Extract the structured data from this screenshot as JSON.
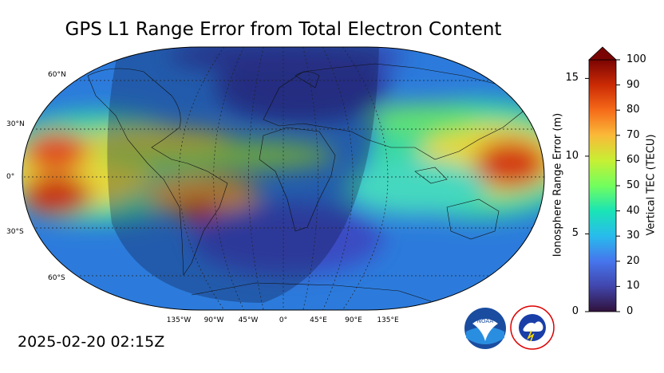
{
  "title": "GPS L1 Range Error from Total Electron Content",
  "timestamp": "2025-02-20 02:15Z",
  "map": {
    "projection": "Robinson",
    "lat_labels": [
      "60°N",
      "30°N",
      "0°",
      "30°S",
      "60°S"
    ],
    "lon_labels": [
      "135°W",
      "90°W",
      "45°W",
      "0°",
      "45°E",
      "90°E",
      "135°E"
    ],
    "gridlines": true,
    "night_shading": true
  },
  "colorbar": {
    "left_label": "Ionosphere Range Error (m)",
    "right_label": "Vertical TEC (TECU)",
    "left_ticks": [
      "0",
      "5",
      "10",
      "15"
    ],
    "right_ticks": [
      "0",
      "10",
      "20",
      "30",
      "40",
      "50",
      "60",
      "70",
      "80",
      "90",
      "100"
    ],
    "tec_range": [
      0,
      100
    ],
    "range_error_range": [
      0,
      16.2
    ],
    "extend": "max"
  },
  "logos": [
    "noaa-logo",
    "national-weather-service-logo"
  ]
}
